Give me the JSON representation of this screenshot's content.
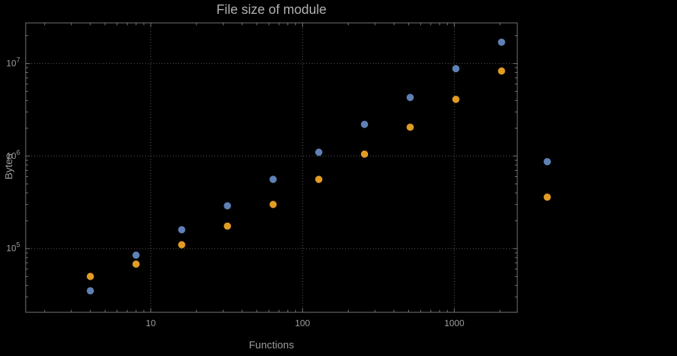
{
  "colors": {
    "background": "#000000",
    "frame": "#7d7d7d",
    "grid": "#666666",
    "text": "#9c9c9c",
    "title": "#b2b2b2",
    "series_blue": "#5e81b5",
    "series_orange": "#e19c24"
  },
  "chart_data": {
    "type": "scatter",
    "title": "File size of module",
    "xlabel": "Functions",
    "ylabel": "Bytes",
    "x_scale": "log",
    "y_scale": "log",
    "grid": "dotted",
    "legend": "none",
    "xlim": [
      1.5,
      2600
    ],
    "ylim": [
      20500,
      27500000
    ],
    "x": [
      4,
      8,
      16,
      32,
      64,
      128,
      256,
      512,
      1024,
      2048,
      4096
    ],
    "series": [
      {
        "name": "blue",
        "color": "#5e81b5",
        "values": [
          35000,
          85000,
          160000,
          290000,
          560000,
          1100000,
          2200000,
          4300000,
          8800000,
          17000000,
          870000
        ]
      },
      {
        "name": "orange",
        "color": "#e19c24",
        "values": [
          50000,
          68000,
          110000,
          175000,
          300000,
          560000,
          1050000,
          2050000,
          4100000,
          8300000,
          360000
        ]
      }
    ],
    "x_ticks": [
      {
        "label": "10",
        "value": 10
      },
      {
        "label": "100",
        "value": 100
      },
      {
        "label": "1000",
        "value": 1000
      }
    ],
    "y_ticks": [
      {
        "mantissa": "10",
        "exponent": "5",
        "value": 100000
      },
      {
        "mantissa": "10",
        "exponent": "6",
        "value": 1000000
      },
      {
        "mantissa": "10",
        "exponent": "7",
        "value": 10000000
      }
    ]
  }
}
